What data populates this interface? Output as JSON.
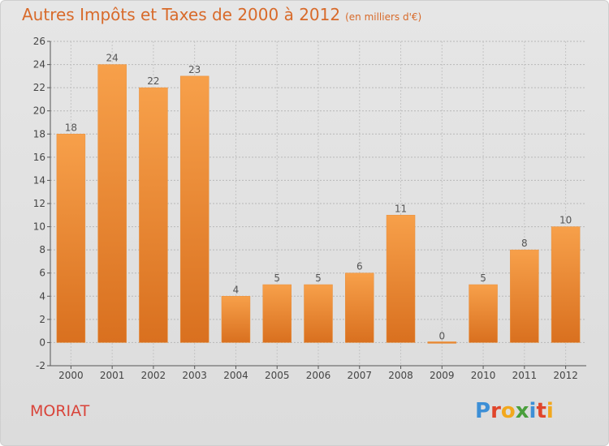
{
  "header": {
    "title": "Autres Impôts et Taxes de 2000 à 2012",
    "subtitle": "(en milliers d'€)"
  },
  "footer": {
    "commune": "MORIAT",
    "logo_text": "Proxiti",
    "logo_colors": [
      "#3d8fd6",
      "#e0452b",
      "#f2a81d",
      "#4a9f3c",
      "#3d8fd6",
      "#e0452b",
      "#f2a81d"
    ]
  },
  "colors": {
    "bar_top": "#f7a04a",
    "bar_bottom": "#d9701f",
    "title": "#d86a2a",
    "commune": "#d9443a"
  },
  "chart_data": {
    "type": "bar",
    "categories": [
      "2000",
      "2001",
      "2002",
      "2003",
      "2004",
      "2005",
      "2006",
      "2007",
      "2008",
      "2009",
      "2010",
      "2011",
      "2012"
    ],
    "values": [
      18,
      24,
      22,
      23,
      4,
      5,
      5,
      6,
      11,
      0,
      5,
      8,
      10
    ],
    "title": "Autres Impôts et Taxes de 2000 à 2012",
    "ylim": [
      -2,
      26
    ],
    "yticks": [
      -2,
      0,
      2,
      4,
      6,
      8,
      10,
      12,
      14,
      16,
      18,
      20,
      22,
      24,
      26
    ],
    "grid": true,
    "data_labels": true
  }
}
